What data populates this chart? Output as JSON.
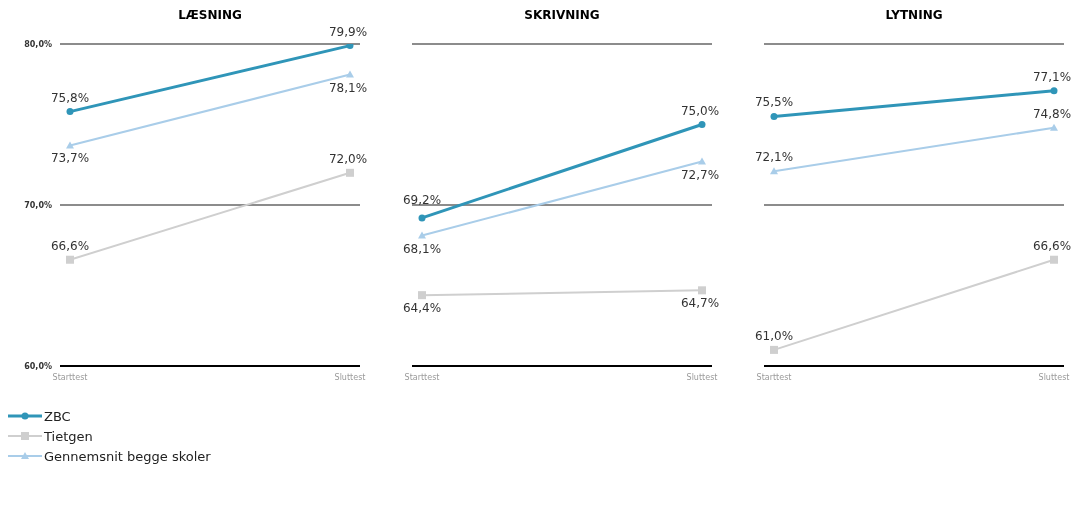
{
  "chart_data": [
    {
      "type": "line",
      "title": "LÆSNING",
      "categories": [
        "Starttest",
        "Sluttest"
      ],
      "ylim": [
        60,
        80
      ],
      "yticks": [
        {
          "value": 60,
          "label": "60,0%"
        },
        {
          "value": 70,
          "label": "70,0%"
        },
        {
          "value": 80,
          "label": "80,0%"
        }
      ],
      "ref_lines": [
        {
          "axis": "y",
          "value": 70,
          "color": "#666666"
        },
        {
          "axis": "y",
          "value": 80,
          "color": "#666666"
        }
      ],
      "legend": "bottom left",
      "series": [
        {
          "name": "ZBC",
          "color": "#2f95b8",
          "marker": "circle",
          "values": [
            75.8,
            79.9
          ],
          "value_labels": [
            "75,8%",
            "79,9%"
          ]
        },
        {
          "name": "Tietgen",
          "color": "#cfcfcf",
          "marker": "square",
          "values": [
            66.6,
            72.0
          ],
          "value_labels": [
            "66,6%",
            "72,0%"
          ]
        },
        {
          "name": "Gennemsnit begge skoler",
          "color": "#a9cde9",
          "marker": "triangle",
          "values": [
            73.7,
            78.1
          ],
          "value_labels": [
            "73,7%",
            "78,1%"
          ]
        }
      ]
    },
    {
      "type": "line",
      "title": "SKRIVNING",
      "categories": [
        "Starttest",
        "Sluttest"
      ],
      "ylim": [
        60,
        80
      ],
      "ref_lines": [
        {
          "axis": "y",
          "value": 70,
          "color": "#666666"
        },
        {
          "axis": "y",
          "value": 80,
          "color": "#666666"
        }
      ],
      "tick_labels": "x",
      "series": [
        {
          "color": "#2f95b8",
          "marker": "circle",
          "values": [
            69.2,
            75.0
          ],
          "value_labels": [
            "69,2%",
            "75,0%"
          ]
        },
        {
          "color": "#cfcfcf",
          "marker": "square",
          "values": [
            64.4,
            64.7
          ],
          "value_labels": [
            "64,4%",
            "64,7%"
          ]
        },
        {
          "color": "#a9cde9",
          "marker": "triangle",
          "values": [
            68.1,
            72.7
          ],
          "value_labels": [
            "68,1%",
            "72,7%"
          ]
        }
      ]
    },
    {
      "type": "line",
      "title": "LYTNING",
      "categories": [
        "Starttest",
        "Sluttest"
      ],
      "ylim": [
        60,
        80
      ],
      "ref_lines": [
        {
          "axis": "y",
          "value": 70,
          "color": "#666666"
        },
        {
          "axis": "y",
          "value": 80,
          "color": "#666666"
        }
      ],
      "tick_labels": "x",
      "series": [
        {
          "color": "#2f95b8",
          "marker": "circle",
          "values": [
            75.5,
            77.1
          ],
          "value_labels": [
            "75,5%",
            "77,1%"
          ]
        },
        {
          "color": "#cfcfcf",
          "marker": "square",
          "values": [
            61.0,
            66.6
          ],
          "value_labels": [
            "61,0%",
            "66,6%"
          ]
        },
        {
          "color": "#a9cde9",
          "marker": "triangle",
          "values": [
            72.1,
            74.8
          ],
          "value_labels": [
            "72,1%",
            "74,8%"
          ]
        }
      ]
    }
  ]
}
